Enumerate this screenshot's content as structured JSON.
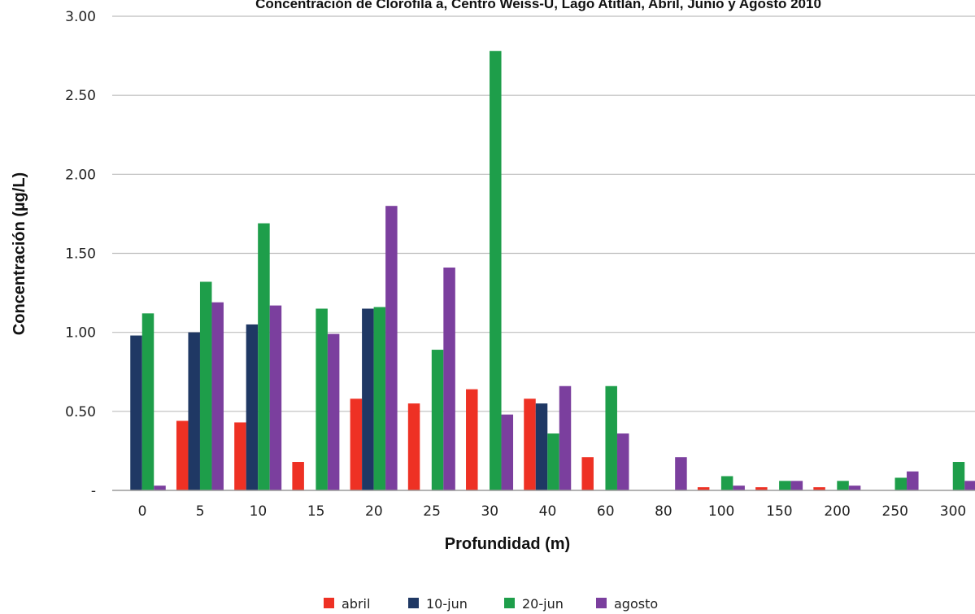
{
  "chart_data": {
    "type": "bar",
    "title": "Concentración de Clorofila a, Centro Weiss-U, Lago Atitlán, Abril, Junio y Agosto 2010",
    "xlabel": "Profundidad (m)",
    "ylabel": "Concentración (µg/L)",
    "ylim": [
      0,
      3.0
    ],
    "yticks": [
      {
        "value": 0,
        "label": "-"
      },
      {
        "value": 0.5,
        "label": "0.50"
      },
      {
        "value": 1.0,
        "label": "1.00"
      },
      {
        "value": 1.5,
        "label": "1.50"
      },
      {
        "value": 2.0,
        "label": "2.00"
      },
      {
        "value": 2.5,
        "label": "2.50"
      },
      {
        "value": 3.0,
        "label": "3.00"
      }
    ],
    "grid": true,
    "legend_position": "bottom",
    "categories": [
      "0",
      "5",
      "10",
      "15",
      "20",
      "25",
      "30",
      "40",
      "60",
      "80",
      "100",
      "150",
      "200",
      "250",
      "300"
    ],
    "series": [
      {
        "name": "abril",
        "color": "#ee3124",
        "values": [
          null,
          0.44,
          0.43,
          0.18,
          0.58,
          0.55,
          0.64,
          0.58,
          0.21,
          null,
          0.02,
          0.02,
          0.02,
          null,
          null
        ]
      },
      {
        "name": "10-jun",
        "color": "#1f3864",
        "values": [
          0.98,
          1.0,
          1.05,
          null,
          1.15,
          null,
          null,
          0.55,
          null,
          null,
          null,
          null,
          null,
          null,
          null
        ]
      },
      {
        "name": "20-jun",
        "color": "#1e9e4a",
        "values": [
          1.12,
          1.32,
          1.69,
          1.15,
          1.16,
          0.89,
          2.78,
          0.36,
          0.66,
          null,
          0.09,
          0.06,
          0.06,
          0.08,
          0.18
        ]
      },
      {
        "name": "agosto",
        "color": "#7b3f9e",
        "values": [
          0.03,
          1.19,
          1.17,
          0.99,
          1.8,
          1.41,
          0.48,
          0.66,
          0.36,
          0.21,
          0.03,
          0.06,
          0.03,
          0.12,
          0.06
        ]
      }
    ]
  }
}
